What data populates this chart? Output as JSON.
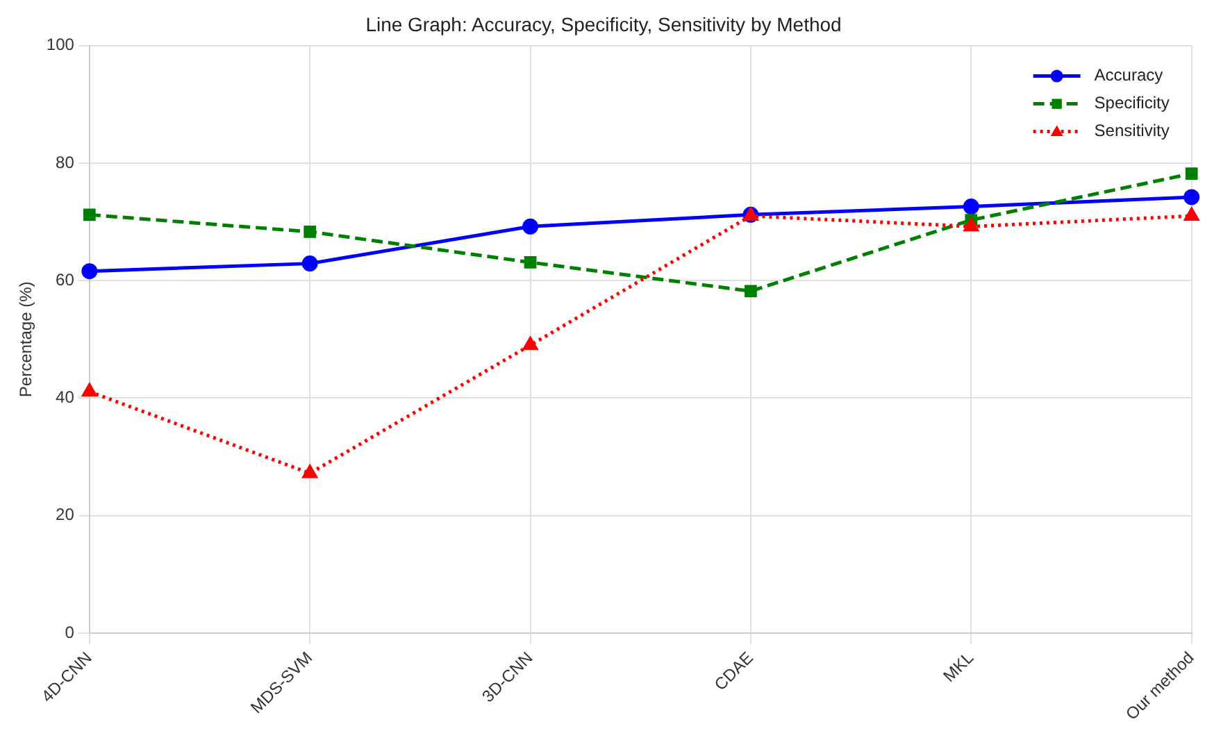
{
  "chart_data": {
    "type": "line",
    "title": "Line Graph: Accuracy, Specificity, Sensitivity by Method",
    "ylabel": "Percentage (%)",
    "categories": [
      "4D-CNN",
      "MDS-SVM",
      "3D-CNN",
      "CDAE",
      "MKL",
      "Our method"
    ],
    "series": [
      {
        "name": "Accuracy",
        "color": "#0000ff",
        "marker": "circle",
        "line_style": "solid",
        "values": [
          61.6,
          62.9,
          69.2,
          71.2,
          72.6,
          74.2
        ]
      },
      {
        "name": "Specificity",
        "color": "#008000",
        "marker": "square",
        "line_style": "dashed",
        "values": [
          71.2,
          68.3,
          63.1,
          58.2,
          70.3,
          78.2
        ]
      },
      {
        "name": "Sensitivity",
        "color": "#ff0000",
        "marker": "triangle",
        "line_style": "dotted",
        "values": [
          41.1,
          27.2,
          49.0,
          71.0,
          69.2,
          71.0
        ]
      }
    ],
    "ylim": [
      0,
      100
    ],
    "yticks": [
      0,
      20,
      40,
      60,
      80,
      100
    ],
    "grid": true,
    "legend": "top right"
  }
}
